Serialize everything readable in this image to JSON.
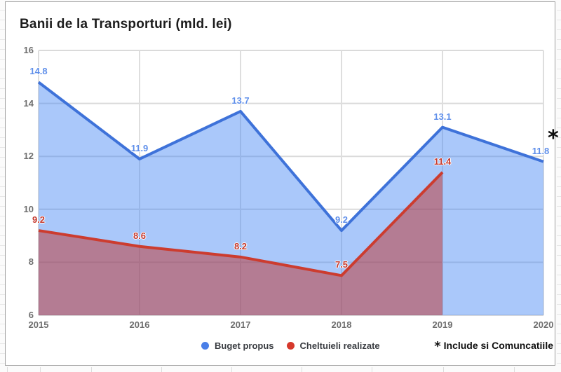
{
  "chart_data": {
    "type": "area",
    "title": "Banii de la Transporturi (mld. lei)",
    "categories": [
      "2015",
      "2016",
      "2017",
      "2018",
      "2019",
      "2020"
    ],
    "series": [
      {
        "name": "Buget propus",
        "color": "#3e72d9",
        "fill": "rgba(66,133,244,0.45)",
        "label_color": "#5f8fea",
        "legend_dot_color": "#4a7fe8",
        "values": [
          14.8,
          11.9,
          13.7,
          9.2,
          13.1,
          11.8
        ],
        "labels": [
          "14.8",
          "11.9",
          "13.7",
          "9.2",
          "13.1",
          "11.8"
        ]
      },
      {
        "name": "Cheltuieli realizate",
        "color": "#cc3c2f",
        "fill": "rgba(190,47,43,0.5)",
        "label_color": "#c5392e",
        "legend_dot_color": "#d6392c",
        "values": [
          9.2,
          8.6,
          8.2,
          7.5,
          11.4
        ],
        "labels": [
          "9.2",
          "8.6",
          "8.2",
          "7.5",
          "11.4"
        ]
      }
    ],
    "ylim": [
      6,
      16
    ],
    "yticks": [
      16,
      14,
      12,
      10,
      8,
      6
    ],
    "grid": true,
    "legend_position": "bottom",
    "annotation": {
      "marker": "*",
      "at_category": "2020",
      "at_series": "Buget propus"
    }
  },
  "footnote": {
    "marker": "*",
    "text": "Include si Comuncatiile"
  }
}
